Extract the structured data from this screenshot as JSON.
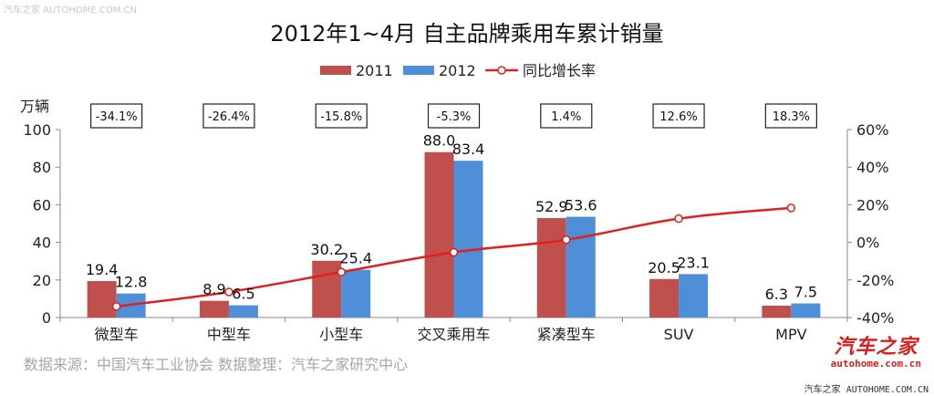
{
  "watermark_top": "汽车之家 AUTOHOME.COM.CN",
  "watermark_bottom": "汽车之家 AUTOHOME.COM.CN",
  "brand": {
    "name": "汽车之家",
    "url": "autohome.com.cn"
  },
  "source_note": "数据来源：中国汽车工业协会   数据整理：汽车之家研究中心",
  "colors": {
    "bar_2011": "#c0504d",
    "bar_2012": "#4f8fd8",
    "line": "#e02020",
    "grid_axis": "#888888"
  },
  "chart_data": {
    "type": "bar",
    "title": "2012年1~4月  自主品牌乘用车累计销量",
    "ylabel": "万辆",
    "ylim": [
      0,
      100
    ],
    "yticks": [
      0,
      20,
      40,
      60,
      80,
      100
    ],
    "y2lim": [
      -40,
      60
    ],
    "y2ticks": [
      "-40%",
      "-20%",
      "0%",
      "20%",
      "40%",
      "60%"
    ],
    "y2tick_values": [
      -40,
      -20,
      0,
      20,
      40,
      60
    ],
    "legend_position": "top",
    "categories": [
      "微型车",
      "中型车",
      "小型车",
      "交叉乘用车",
      "紧凑型车",
      "SUV",
      "MPV"
    ],
    "series": [
      {
        "name": "2011",
        "type": "bar",
        "axis": "left",
        "values": [
          19.4,
          8.9,
          30.2,
          88.0,
          52.9,
          20.5,
          6.3
        ],
        "labels": [
          "19.4",
          "8.9",
          "30.2",
          "88.0",
          "52.9",
          "20.5",
          "6.3"
        ]
      },
      {
        "name": "2012",
        "type": "bar",
        "axis": "left",
        "values": [
          12.8,
          6.5,
          25.4,
          83.4,
          53.6,
          23.1,
          7.5
        ],
        "labels": [
          "12.8",
          "6.5",
          "25.4",
          "83.4",
          "53.6",
          "23.1",
          "7.5"
        ]
      },
      {
        "name": "同比增长率",
        "type": "line",
        "axis": "right",
        "values": [
          -34.1,
          -26.4,
          -15.8,
          -5.3,
          1.4,
          12.6,
          18.3
        ],
        "labels": [
          "-34.1%",
          "-26.4%",
          "-15.8%",
          "-5.3%",
          "1.4%",
          "12.6%",
          "18.3%"
        ]
      }
    ]
  }
}
